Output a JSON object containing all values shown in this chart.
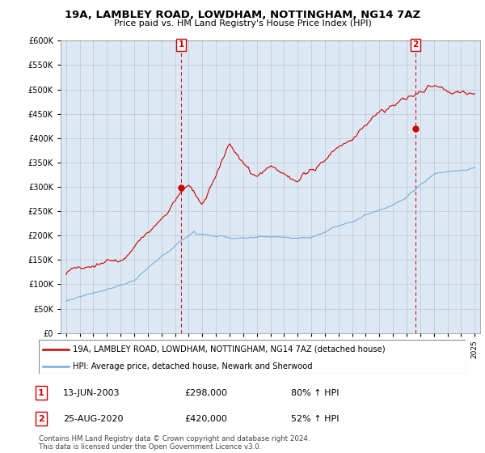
{
  "title": "19A, LAMBLEY ROAD, LOWDHAM, NOTTINGHAM, NG14 7AZ",
  "subtitle": "Price paid vs. HM Land Registry's House Price Index (HPI)",
  "legend_line1": "19A, LAMBLEY ROAD, LOWDHAM, NOTTINGHAM, NG14 7AZ (detached house)",
  "legend_line2": "HPI: Average price, detached house, Newark and Sherwood",
  "sale1_label": "1",
  "sale1_date": "13-JUN-2003",
  "sale1_price": "£298,000",
  "sale1_change": "80% ↑ HPI",
  "sale2_label": "2",
  "sale2_date": "25-AUG-2020",
  "sale2_price": "£420,000",
  "sale2_change": "52% ↑ HPI",
  "footer": "Contains HM Land Registry data © Crown copyright and database right 2024.\nThis data is licensed under the Open Government Licence v3.0.",
  "hpi_color": "#7aaddb",
  "price_color": "#cc0000",
  "sale_marker_color": "#cc0000",
  "bg_color": "#ffffff",
  "plot_bg_color": "#dce9f5",
  "ylim": [
    0,
    600000
  ],
  "yticks": [
    0,
    50000,
    100000,
    150000,
    200000,
    250000,
    300000,
    350000,
    400000,
    450000,
    500000,
    550000,
    600000
  ],
  "sale1_x": 2003.45,
  "sale1_y": 298000,
  "sale2_x": 2020.65,
  "sale2_y": 420000,
  "xmin": 1994.6,
  "xmax": 2025.4
}
